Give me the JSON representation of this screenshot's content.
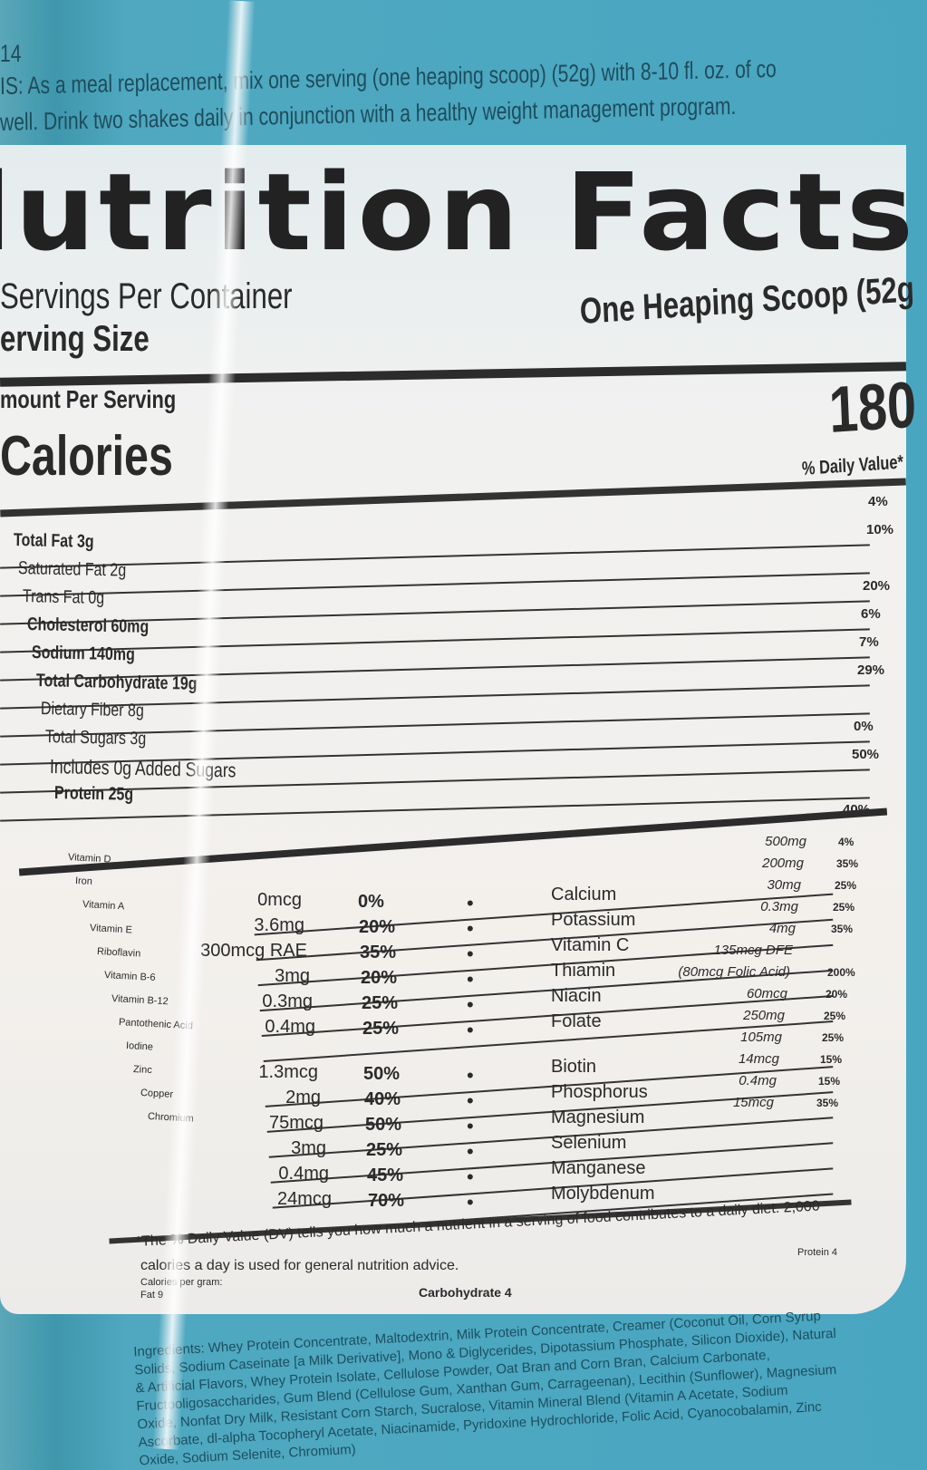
{
  "directions": {
    "line0": "14",
    "line1": "IS: As a meal replacement, mix one serving (one heaping scoop) (52g) with 8-10 fl. oz. of co",
    "line2": "well. Drink two shakes daily in conjunction with a healthy weight management program."
  },
  "label": {
    "title": "lutrition Facts",
    "servings_per_container": "Servings Per Container",
    "serving_size_label": "erving Size",
    "serving_size_value": "One Heaping Scoop (52g",
    "amount_per_serving": "mount Per Serving",
    "calories_label": "Calories",
    "calories_value": "180",
    "daily_value_header": "% Daily Value*",
    "nutrients": [
      {
        "name": "Total Fat 3g",
        "dv": "4%"
      },
      {
        "name": "Saturated Fat 2g",
        "dv": "10%"
      },
      {
        "name": "Trans Fat 0g",
        "dv": ""
      },
      {
        "name": "Cholesterol 60mg",
        "dv": "20%"
      },
      {
        "name": "Sodium 140mg",
        "dv": "6%"
      },
      {
        "name": "Total Carbohydrate 19g",
        "dv": "7%"
      },
      {
        "name": "Dietary Fiber 8g",
        "dv": "29%"
      },
      {
        "name": "Total Sugars 3g",
        "dv": ""
      },
      {
        "name": "Includes 0g Added Sugars",
        "dv": "0%"
      },
      {
        "name": "Protein 25g",
        "dv": "50%"
      }
    ],
    "extra_dv": "40%",
    "micros_left_names": [
      "Vitamin D",
      "Iron",
      "Vitamin A",
      "Vitamin E",
      "Riboflavin",
      "Vitamin B-6",
      "Vitamin B-12",
      "Pantothenic Acid",
      "Iodine",
      "Zinc",
      "Copper",
      "Chromium"
    ],
    "micros_left": [
      {
        "amount": "0mcg",
        "dv": "0%"
      },
      {
        "amount": "3.6mg",
        "dv": "20%"
      },
      {
        "amount": "300mcg RAE",
        "dv": "35%"
      },
      {
        "amount": "3mg",
        "dv": "20%"
      },
      {
        "amount": "0.3mg",
        "dv": "25%"
      },
      {
        "amount": "0.4mg",
        "dv": "25%"
      },
      {
        "amount": "1.3mcg",
        "dv": "50%"
      },
      {
        "amount": "2mg",
        "dv": "40%"
      },
      {
        "amount": "75mcg",
        "dv": "50%"
      },
      {
        "amount": "3mg",
        "dv": "25%"
      },
      {
        "amount": "0.4mg",
        "dv": "45%"
      },
      {
        "amount": "24mcg",
        "dv": "70%"
      }
    ],
    "micros_right_names": [
      "Calcium",
      "Potassium",
      "Vitamin C",
      "Thiamin",
      "Niacin",
      "Folate",
      "Biotin",
      "Phosphorus",
      "Magnesium",
      "Selenium",
      "Manganese",
      "Molybdenum"
    ],
    "micros_right": [
      {
        "amount": "500mg",
        "dv": "4%"
      },
      {
        "amount": "200mg",
        "dv": "35%"
      },
      {
        "amount": "30mg",
        "dv": "25%"
      },
      {
        "amount": "0.3mg",
        "dv": "25%"
      },
      {
        "amount": "4mg",
        "dv": "35%"
      },
      {
        "amount": "135mcg DFE",
        "dv": ""
      },
      {
        "amount": "(80mcg Folic Acid)",
        "dv": "200%"
      },
      {
        "amount": "60mcg",
        "dv": "20%"
      },
      {
        "amount": "250mg",
        "dv": "25%"
      },
      {
        "amount": "105mg",
        "dv": "25%"
      },
      {
        "amount": "14mcg",
        "dv": "15%"
      },
      {
        "amount": "0.4mg",
        "dv": "15%"
      },
      {
        "amount": "15mcg",
        "dv": "35%"
      }
    ],
    "separator": "•",
    "footnote1": "*The % Daily Value (DV) tells you how much a nutrient in a serving of food contributes to a daily diet. 2,000",
    "footnote2": "calories a day is used for general nutrition advice.",
    "footnote3": "Calories per gram:",
    "footnote4": "Fat 9",
    "footnote_protein": "Protein 4",
    "carbohydrate_per_gram": "Carbohydrate 4"
  },
  "ingredients": "Ingredients: Whey Protein Concentrate, Maltodextrin, Milk Protein Concentrate, Creamer (Coconut Oil, Corn Syrup Solids, Sodium Caseinate [a Milk Derivative], Mono & Diglycerides, Dipotassium Phosphate, Silicon Dioxide), Natural & Artificial Flavors, Whey Protein Isolate, Cellulose Powder, Oat Bran and Corn Bran, Calcium Carbonate, Fructooligosaccharides, Gum Blend (Cellulose Gum, Xanthan Gum, Carrageenan), Lecithin (Sunflower), Magnesium Oxide, Nonfat Dry Milk, Resistant Corn Starch, Sucralose, Vitamin Mineral Blend (Vitamin A Acetate, Sodium Ascorbate, dl-alpha Tocopheryl Acetate, Niacinamide, Pyridoxine Hydrochloride, Folic Acid, Cyanocobalamin, Zinc Oxide, Sodium Selenite, Chromium)"
}
